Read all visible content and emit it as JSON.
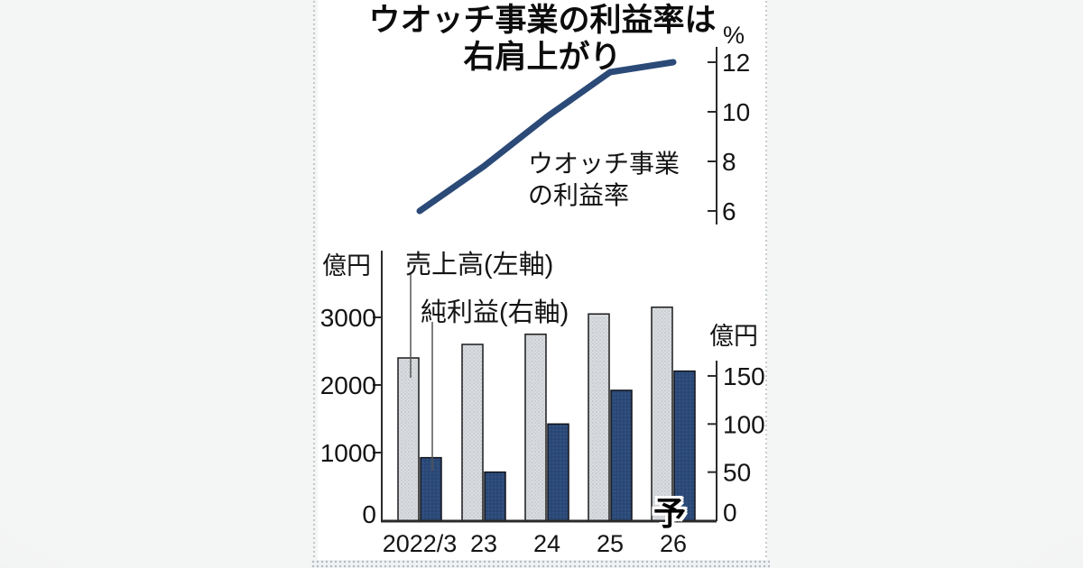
{
  "title": {
    "line1": "ウオッチ事業の利益率は",
    "line2": "右肩上がり"
  },
  "chart_data": [
    {
      "type": "line",
      "name": "watch-business-profit-margin",
      "annotation": [
        "ウオッチ事業",
        "の利益率"
      ],
      "unit": "%",
      "categories": [
        "2022/3",
        "23",
        "24",
        "25",
        "26"
      ],
      "values": [
        6.0,
        7.8,
        9.8,
        11.6,
        12.0
      ],
      "yticks": [
        6,
        8,
        10,
        12
      ],
      "ylim": [
        5.8,
        12.6
      ],
      "color": "#2b4a78",
      "grid": false,
      "legend_position": "inline-annotation"
    },
    {
      "type": "bar",
      "name": "sales-and-net-profit",
      "categories": [
        "2022/3",
        "23",
        "24",
        "25",
        "26"
      ],
      "series": [
        {
          "name": "売上高(左軸)",
          "axis": "left",
          "unit": "億円",
          "values": [
            2400,
            2600,
            2750,
            3050,
            3150
          ],
          "color": "#d8dbde",
          "texture": "halftone-dots"
        },
        {
          "name": "純利益(右軸)",
          "axis": "right",
          "unit": "億円",
          "values": [
            65,
            50,
            100,
            135,
            155
          ],
          "color": "#2c4a79",
          "texture": "halftone-dots"
        }
      ],
      "left_axis": {
        "unit": "億円",
        "ticks": [
          0,
          1000,
          2000,
          3000
        ],
        "max": 3300
      },
      "right_axis": {
        "unit": "億円",
        "ticks": [
          0,
          50,
          100,
          150
        ],
        "max": 165
      },
      "forecast": {
        "label": "予",
        "applies_to": "26"
      },
      "grid": false
    }
  ],
  "colors": {
    "line": "#2b4a78",
    "bar_gray": "#d8dbde",
    "bar_navy": "#2c4a79",
    "axis": "#2a2a2a",
    "panel": "#ffffff",
    "background": "#ececed"
  }
}
